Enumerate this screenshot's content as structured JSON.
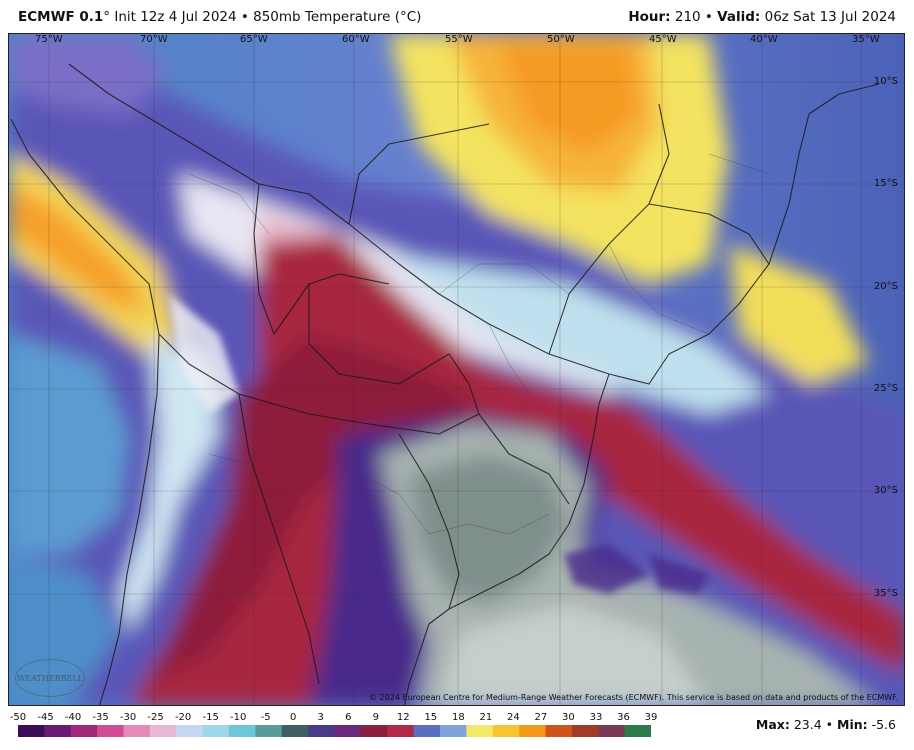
{
  "header": {
    "model": "ECMWF 0.1",
    "degree_symbol": "°",
    "run_info": " Init 12z 4 Jul 2024 • 850mb Temperature (°C)",
    "hour_label": "Hour:",
    "hour_value": " 210 • ",
    "valid_label": "Valid:",
    "valid_value": " 06z Sat 13 Jul 2024"
  },
  "map": {
    "longitude_labels": [
      "75°W",
      "70°W",
      "65°W",
      "60°W",
      "55°W",
      "50°W",
      "45°W",
      "40°W",
      "35°W"
    ],
    "latitude_labels": [
      "10°S",
      "15°S",
      "20°S",
      "25°S",
      "30°S",
      "35°S"
    ],
    "copyright": "© 2024 European Centre for Medium-Range Weather Forecasts (ECMWF). This service is based on data and products of the ECMWF.",
    "logo_text": "WEATHERBELL"
  },
  "legend": {
    "ticks": [
      "-50",
      "-45",
      "-40",
      "-35",
      "-30",
      "-25",
      "-20",
      "-15",
      "-10",
      "-5",
      "0",
      "3",
      "6",
      "9",
      "12",
      "15",
      "18",
      "21",
      "24",
      "27",
      "30",
      "33",
      "36",
      "39"
    ],
    "colors": [
      "#3b0d55",
      "#6a1a72",
      "#a0287a",
      "#d04c95",
      "#e48ab8",
      "#e8b9d4",
      "#c6d8ef",
      "#9fd7ea",
      "#6fc6d8",
      "#5a9a98",
      "#3f5e63",
      "#4a3b86",
      "#6a2a7a",
      "#8c1f3f",
      "#b0294a",
      "#5b6fc0",
      "#7fa3d9",
      "#f2e96a",
      "#f7c531",
      "#f39a1b",
      "#d0531e",
      "#a23a2a",
      "#7a3a55",
      "#2f7a4a"
    ]
  },
  "stats": {
    "max_label": "Max:",
    "max_value": " 23.4 • ",
    "min_label": "Min:",
    "min_value": " -5.6"
  }
}
